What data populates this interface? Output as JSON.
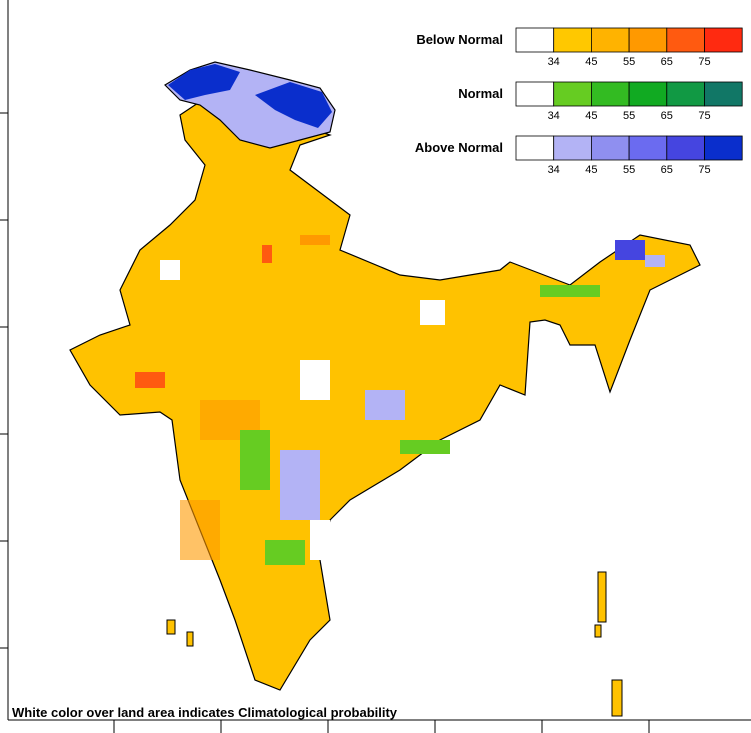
{
  "legend": [
    {
      "name": "Below Normal",
      "colors": [
        "#ffffff",
        "#ffc800",
        "#ffb300",
        "#ff9900",
        "#ff5a10",
        "#ff2a10"
      ],
      "ticks": [
        34,
        45,
        55,
        65,
        75
      ]
    },
    {
      "name": "Normal",
      "colors": [
        "#ffffff",
        "#66cc22",
        "#33bb22",
        "#11aa22",
        "#119944",
        "#117766"
      ],
      "ticks": [
        34,
        45,
        55,
        65,
        75
      ]
    },
    {
      "name": "Above Normal",
      "colors": [
        "#ffffff",
        "#b3b3f5",
        "#8f8ff0",
        "#6b6bf0",
        "#4545e0",
        "#0a2ecc"
      ],
      "ticks": [
        34,
        45,
        55,
        65,
        75
      ]
    }
  ],
  "note": "White color over land area indicates Climatological probability"
}
